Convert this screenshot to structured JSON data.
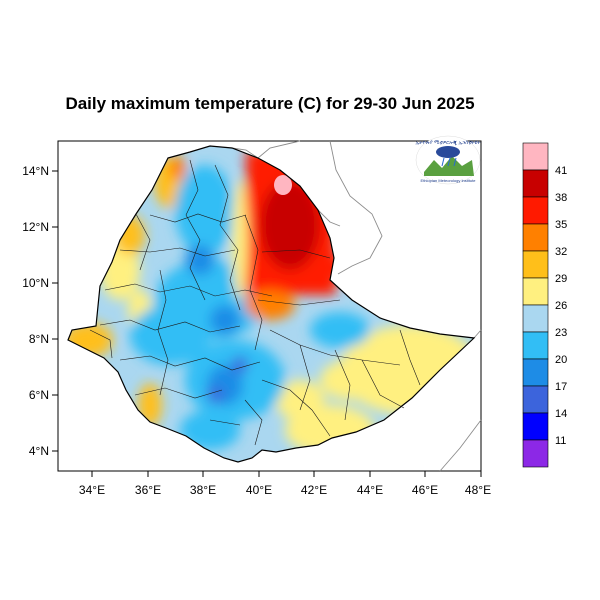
{
  "title": "Daily maximum temperature (C) for 29-30 Jun 2025",
  "map": {
    "lon_range": [
      33,
      48
    ],
    "lat_range": [
      3.3,
      15
    ],
    "x_ticks": [
      "34°E",
      "36°E",
      "38°E",
      "40°E",
      "42°E",
      "44°E",
      "46°E",
      "48°E"
    ],
    "x_tick_values": [
      34,
      36,
      38,
      40,
      42,
      44,
      46,
      48
    ],
    "y_ticks": [
      "14°N",
      "12°N",
      "10°N",
      "8°N",
      "6°N",
      "4°N"
    ],
    "y_tick_values": [
      14,
      12,
      10,
      8,
      6,
      4
    ]
  },
  "legend": {
    "labels": [
      "41",
      "38",
      "35",
      "32",
      "29",
      "26",
      "23",
      "20",
      "17",
      "14",
      "11"
    ],
    "colors": [
      "#ffb6c1",
      "#c80000",
      "#ff1a00",
      "#ff8000",
      "#ffbf1a",
      "#fff080",
      "#aad7f0",
      "#32bef5",
      "#1e8ce6",
      "#3c64dc",
      "#0000ff",
      "#8c28e6"
    ]
  },
  "logo": {
    "icon": "meteorology-agency-logo-icon",
    "text_top": "ኢትዮጵያ ሚቲዎሮሎጂ ኢንስቲትዩት",
    "text_bottom": "Ethiopian Meteorology Institute"
  }
}
